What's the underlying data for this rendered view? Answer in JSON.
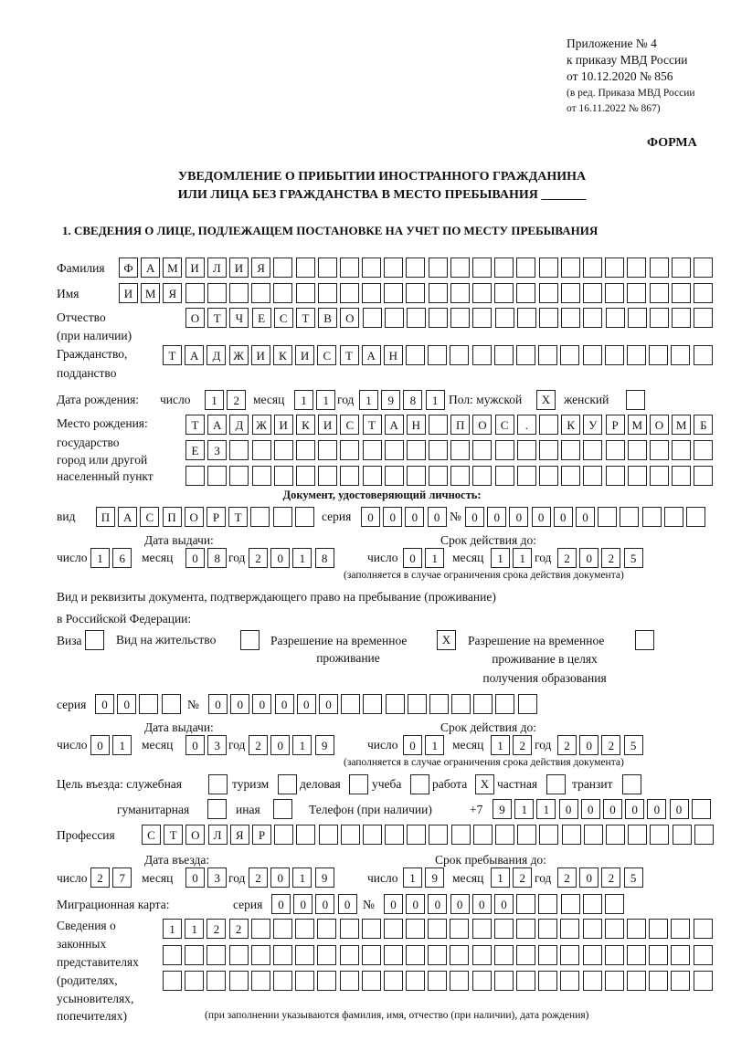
{
  "header": {
    "appendix": "Приложение № 4",
    "order": "к приказу МВД России",
    "order_date": "от 10.12.2020 № 856",
    "revision1": "(в ред. Приказа МВД России",
    "revision2": "от 16.11.2022 № 867)",
    "form": "ФОРМА",
    "title1": "УВЕДОМЛЕНИЕ О ПРИБЫТИИ ИНОСТРАННОГО ГРАЖДАНИНА",
    "title2": "ИЛИ ЛИЦА БЕЗ ГРАЖДАНСТВА В МЕСТО ПРЕБЫВАНИЯ _______",
    "section1": "1. СВЕДЕНИЯ О ЛИЦЕ, ПОДЛЕЖАЩЕМ ПОСТАНОВКЕ НА УЧЕТ ПО МЕСТУ ПРЕБЫВАНИЯ"
  },
  "person": {
    "surname_label": "Фамилия",
    "surname": [
      "Ф",
      "А",
      "М",
      "И",
      "Л",
      "И",
      "Я",
      "",
      "",
      "",
      "",
      "",
      "",
      "",
      "",
      "",
      "",
      "",
      "",
      "",
      "",
      "",
      "",
      "",
      "",
      "",
      ""
    ],
    "name_label": "Имя",
    "name": [
      "И",
      "М",
      "Я",
      "",
      "",
      "",
      "",
      "",
      "",
      "",
      "",
      "",
      "",
      "",
      "",
      "",
      "",
      "",
      "",
      "",
      "",
      "",
      "",
      "",
      "",
      "",
      ""
    ],
    "patronymic_label1": "Отчество",
    "patronymic_label2": "(при наличии)",
    "patronymic": [
      "О",
      "Т",
      "Ч",
      "Е",
      "С",
      "Т",
      "В",
      "О",
      "",
      "",
      "",
      "",
      "",
      "",
      "",
      "",
      "",
      "",
      "",
      "",
      "",
      "",
      "",
      ""
    ],
    "citizenship_label1": "Гражданство,",
    "citizenship_label2": "подданство",
    "citizenship": [
      "Т",
      "А",
      "Д",
      "Ж",
      "И",
      "К",
      "И",
      "С",
      "Т",
      "А",
      "Н",
      "",
      "",
      "",
      "",
      "",
      "",
      "",
      "",
      "",
      "",
      "",
      "",
      "",
      ""
    ],
    "birth_label": "Дата рождения:",
    "day_label": "число",
    "month_label": "месяц",
    "year_label": "год",
    "birth_day": [
      "1",
      "2"
    ],
    "birth_month": [
      "1",
      "1"
    ],
    "birth_year": [
      "1",
      "9",
      "8",
      "1"
    ],
    "sex_label": "Пол: мужской",
    "male": "X",
    "female_label": "женский",
    "female": "",
    "birthplace_label1": "Место рождения:",
    "birthplace_label2": "государство",
    "birthplace_label3": "город или другой",
    "birthplace_label4": "населенный пункт",
    "birthplace1": [
      "Т",
      "А",
      "Д",
      "Ж",
      "И",
      "К",
      "И",
      "С",
      "Т",
      "А",
      "Н",
      "",
      "П",
      "О",
      "С",
      ".",
      "",
      "К",
      "У",
      "Р",
      "М",
      "О",
      "М",
      "Б"
    ],
    "birthplace2": [
      "Е",
      "З",
      "",
      "",
      "",
      "",
      "",
      "",
      "",
      "",
      "",
      "",
      "",
      "",
      "",
      "",
      "",
      "",
      "",
      "",
      "",
      "",
      "",
      ""
    ],
    "birthplace3": [
      "",
      "",
      "",
      "",
      "",
      "",
      "",
      "",
      "",
      "",
      "",
      "",
      "",
      "",
      "",
      "",
      "",
      "",
      "",
      "",
      "",
      "",
      "",
      ""
    ]
  },
  "id_doc": {
    "heading": "Документ, удостоверяющий личность:",
    "kind_label": "вид",
    "kind": [
      "П",
      "А",
      "С",
      "П",
      "О",
      "Р",
      "Т",
      "",
      "",
      ""
    ],
    "series_label": "серия",
    "series": [
      "0",
      "0",
      "0",
      "0"
    ],
    "number_label": "№",
    "number": [
      "0",
      "0",
      "0",
      "0",
      "0",
      "0",
      "",
      "",
      "",
      "",
      ""
    ],
    "issue_label": "Дата выдачи:",
    "valid_label": "Срок действия до:",
    "issue_day": [
      "1",
      "6"
    ],
    "issue_month": [
      "0",
      "8"
    ],
    "issue_year": [
      "2",
      "0",
      "1",
      "8"
    ],
    "valid_day": [
      "0",
      "1"
    ],
    "valid_month": [
      "1",
      "1"
    ],
    "valid_year": [
      "2",
      "0",
      "2",
      "5"
    ],
    "note": "(заполняется в случае ограничения срока действия документа)"
  },
  "stay_doc": {
    "label1": "Вид и реквизиты документа, подтверждающего право на пребывание (проживание)",
    "label2": "в Российской Федерации:",
    "visa_label": "Виза",
    "visa": "",
    "residence_label": "Вид на жительство",
    "residence": "",
    "temp_label1": "Разрешение на временное",
    "temp_label2": "проживание",
    "temp": "X",
    "edu_label1": "Разрешение на временное",
    "edu_label2": "проживание в целях",
    "edu_label3": "получения образования",
    "edu": "",
    "series_label": "серия",
    "series": [
      "0",
      "0",
      "",
      ""
    ],
    "number_label": "№",
    "number": [
      "0",
      "0",
      "0",
      "0",
      "0",
      "0",
      "",
      "",
      "",
      "",
      "",
      "",
      "",
      "",
      ""
    ],
    "issue_label": "Дата выдачи:",
    "valid_label": "Срок действия до:",
    "issue_day": [
      "0",
      "1"
    ],
    "issue_month": [
      "0",
      "3"
    ],
    "issue_year": [
      "2",
      "0",
      "1",
      "9"
    ],
    "valid_day": [
      "0",
      "1"
    ],
    "valid_month": [
      "1",
      "2"
    ],
    "valid_year": [
      "2",
      "0",
      "2",
      "5"
    ],
    "note": "(заполняется в случае ограничения срока действия документа)"
  },
  "purpose": {
    "label": "Цель въезда: служебная",
    "service": "",
    "tourism_label": "туризм",
    "tourism": "",
    "business_label": "деловая",
    "business": "",
    "study_label": "учеба",
    "study": "",
    "work_label": "работа",
    "work": "X",
    "private_label": "частная",
    "private": "",
    "transit_label": "транзит",
    "transit": "",
    "humanitarian_label": "гуманитарная",
    "humanitarian": "",
    "other_label": "иная",
    "other": "",
    "phone_label": "Телефон (при наличии)",
    "phone_prefix": "+7",
    "phone": [
      "9",
      "1",
      "1",
      "0",
      "0",
      "0",
      "0",
      "0",
      "0",
      ""
    ]
  },
  "profession": {
    "label": "Профессия",
    "value": [
      "С",
      "Т",
      "О",
      "Л",
      "Я",
      "Р",
      "",
      "",
      "",
      "",
      "",
      "",
      "",
      "",
      "",
      "",
      "",
      "",
      "",
      "",
      "",
      "",
      "",
      "",
      "",
      ""
    ]
  },
  "entry": {
    "entry_label": "Дата въезда:",
    "stay_label": "Срок пребывания до:",
    "entry_day": [
      "2",
      "7"
    ],
    "entry_month": [
      "0",
      "3"
    ],
    "entry_year": [
      "2",
      "0",
      "1",
      "9"
    ],
    "stay_day": [
      "1",
      "9"
    ],
    "stay_month": [
      "1",
      "2"
    ],
    "stay_year": [
      "2",
      "0",
      "2",
      "5"
    ]
  },
  "migration_card": {
    "label": "Миграционная карта:",
    "series_label": "серия",
    "series": [
      "0",
      "0",
      "0",
      "0"
    ],
    "number_label": "№",
    "number": [
      "0",
      "0",
      "0",
      "0",
      "0",
      "0",
      "",
      "",
      "",
      "",
      ""
    ]
  },
  "representatives": {
    "label1": "Сведения о",
    "label2": "законных",
    "label3": "представителях",
    "label4": "(родителях,",
    "label5": "усыновителях,",
    "label6": "попечителях)",
    "row1": [
      "1",
      "1",
      "2",
      "2",
      "",
      "",
      "",
      "",
      "",
      "",
      "",
      "",
      "",
      "",
      "",
      "",
      "",
      "",
      "",
      "",
      "",
      "",
      "",
      "",
      ""
    ],
    "row2": [
      "",
      "",
      "",
      "",
      "",
      "",
      "",
      "",
      "",
      "",
      "",
      "",
      "",
      "",
      "",
      "",
      "",
      "",
      "",
      "",
      "",
      "",
      "",
      "",
      ""
    ],
    "row3": [
      "",
      "",
      "",
      "",
      "",
      "",
      "",
      "",
      "",
      "",
      "",
      "",
      "",
      "",
      "",
      "",
      "",
      "",
      "",
      "",
      "",
      "",
      "",
      "",
      ""
    ],
    "note": "(при заполнении указываются фамилия, имя, отчество (при наличии), дата рождения)"
  }
}
